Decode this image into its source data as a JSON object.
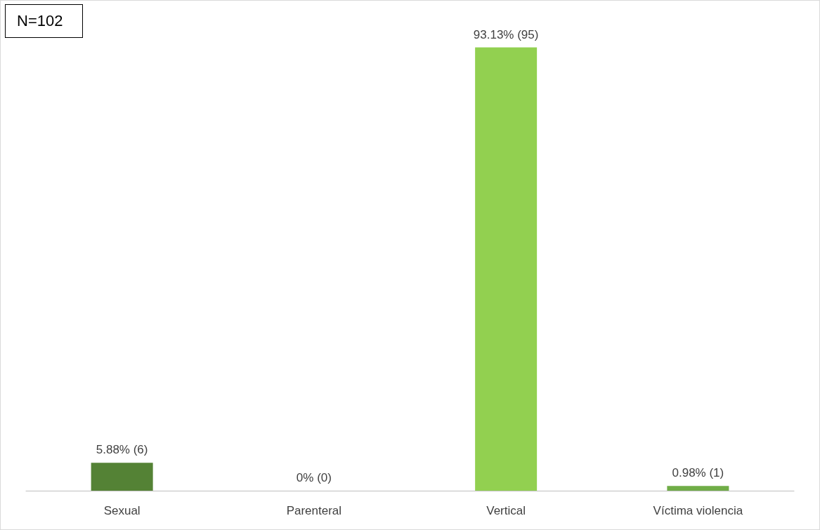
{
  "chart_data": {
    "type": "bar",
    "categories": [
      "Sexual",
      "Parenteral",
      "Vertical",
      "Víctima violencia"
    ],
    "values": [
      5.88,
      0,
      93.13,
      0.98
    ],
    "colors": [
      "#548235",
      "#70ad47",
      "#92d050",
      "#70ad47"
    ],
    "value_labels": [
      "5.88% (6)",
      "0% (0)",
      "93.13% (95)",
      "0.98% (1)"
    ],
    "annotations": [
      "N=102"
    ]
  }
}
